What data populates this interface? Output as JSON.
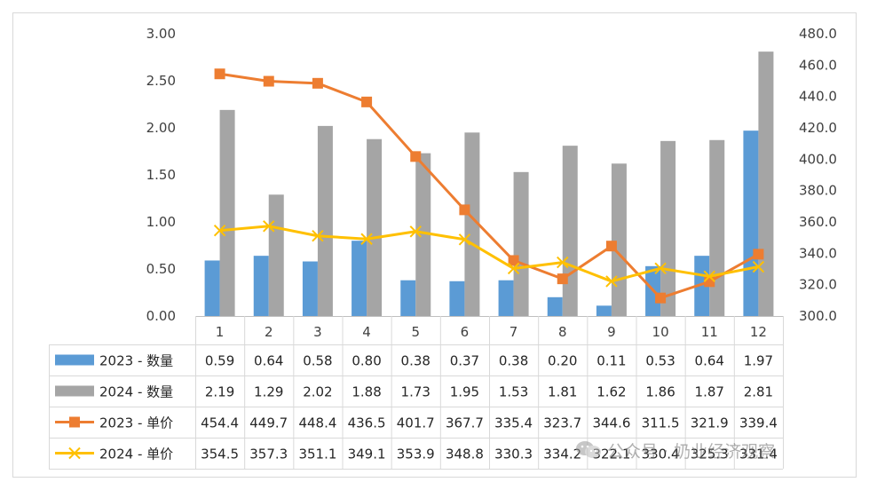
{
  "chart_data": {
    "type": "bar-line combo with data table",
    "categories": [
      "1",
      "2",
      "3",
      "4",
      "5",
      "6",
      "7",
      "8",
      "9",
      "10",
      "11",
      "12"
    ],
    "y_left": {
      "min": 0,
      "max": 3,
      "ticks": [
        "0.00",
        "0.50",
        "1.00",
        "1.50",
        "2.00",
        "2.50",
        "3.00"
      ]
    },
    "y_right": {
      "min": 300,
      "max": 480,
      "ticks": [
        "300.0",
        "320.0",
        "340.0",
        "360.0",
        "380.0",
        "400.0",
        "420.0",
        "440.0",
        "460.0",
        "480.0"
      ]
    },
    "grid": false,
    "legend_placement": "data-table-left",
    "series": [
      {
        "name": "2023 - 数量",
        "kind": "bar",
        "axis": "left",
        "color": "#5b9bd5",
        "values": [
          0.59,
          0.64,
          0.58,
          0.8,
          0.38,
          0.37,
          0.38,
          0.2,
          0.11,
          0.53,
          0.64,
          1.97
        ],
        "labels": [
          "0.59",
          "0.64",
          "0.58",
          "0.80",
          "0.38",
          "0.37",
          "0.38",
          "0.20",
          "0.11",
          "0.53",
          "0.64",
          "1.97"
        ]
      },
      {
        "name": "2024 - 数量",
        "kind": "bar",
        "axis": "left",
        "color": "#a5a5a5",
        "values": [
          2.19,
          1.29,
          2.02,
          1.88,
          1.73,
          1.95,
          1.53,
          1.81,
          1.62,
          1.86,
          1.87,
          2.81
        ],
        "labels": [
          "2.19",
          "1.29",
          "2.02",
          "1.88",
          "1.73",
          "1.95",
          "1.53",
          "1.81",
          "1.62",
          "1.86",
          "1.87",
          "2.81"
        ]
      },
      {
        "name": "2023 - 单价",
        "kind": "line",
        "marker": "square",
        "axis": "right",
        "color": "#ed7d31",
        "values": [
          454.4,
          449.7,
          448.4,
          436.5,
          401.7,
          367.7,
          335.4,
          323.7,
          344.6,
          311.5,
          321.9,
          339.4
        ],
        "labels": [
          "454.4",
          "449.7",
          "448.4",
          "436.5",
          "401.7",
          "367.7",
          "335.4",
          "323.7",
          "344.6",
          "311.5",
          "321.9",
          "339.4"
        ]
      },
      {
        "name": "2024 - 单价",
        "kind": "line",
        "marker": "x",
        "axis": "right",
        "color": "#ffc000",
        "values": [
          354.5,
          357.3,
          351.1,
          349.1,
          353.9,
          348.8,
          330.3,
          334.2,
          322.1,
          330.4,
          325.3,
          331.4
        ],
        "labels": [
          "354.5",
          "357.3",
          "351.1",
          "349.1",
          "353.9",
          "348.8",
          "330.3",
          "334.2",
          "322.1",
          "330.4",
          "325.3",
          "331.4"
        ]
      }
    ]
  },
  "watermark": {
    "text": "公众号 · 奶业经济观察",
    "icon": "wechat-logo-icon"
  }
}
